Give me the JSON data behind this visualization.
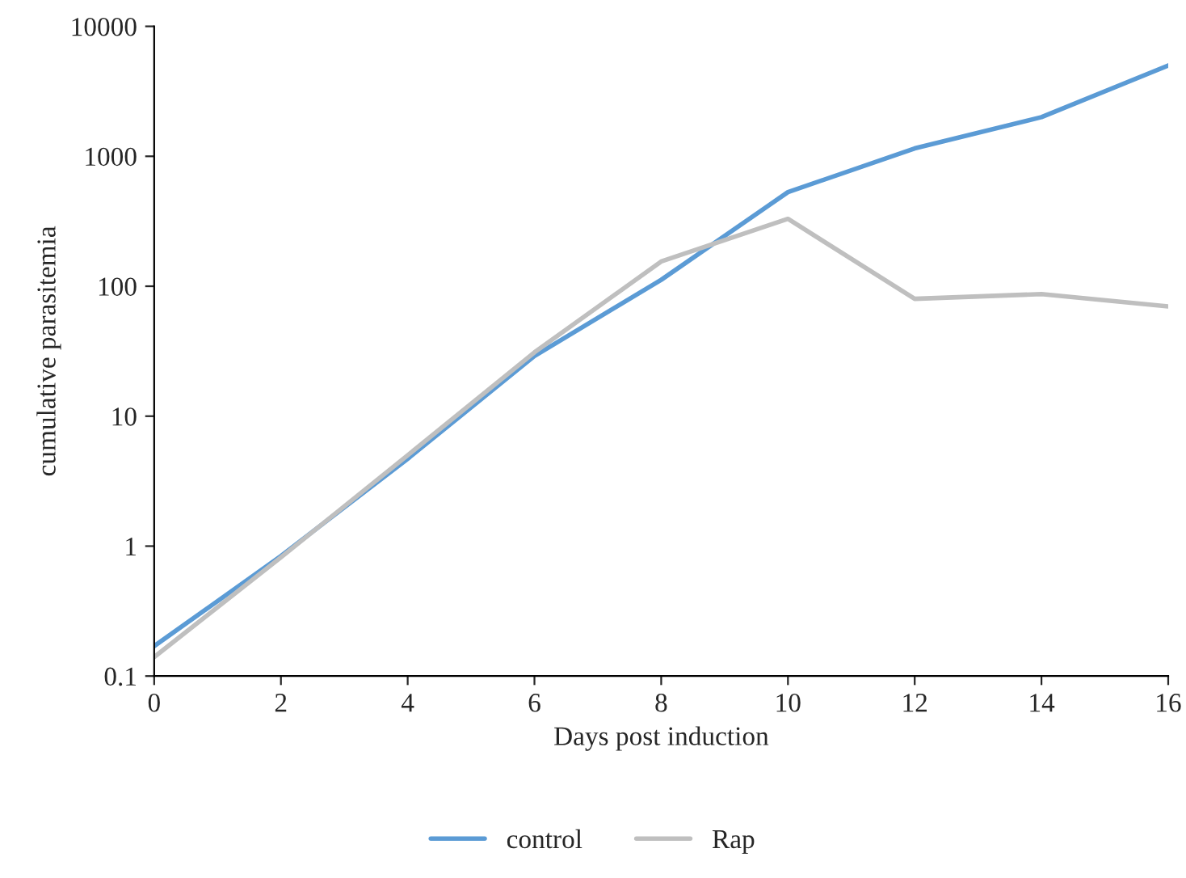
{
  "chart_data": {
    "type": "line",
    "xlabel": "Days post induction",
    "ylabel": "cumulative parasitemia",
    "x": [
      0,
      2,
      4,
      6,
      8,
      10,
      12,
      14,
      16
    ],
    "series": [
      {
        "name": "control",
        "color": "#5b9bd5",
        "values": [
          0.17,
          0.84,
          4.7,
          29,
          112,
          530,
          1150,
          2000,
          5000
        ]
      },
      {
        "name": "Rap",
        "color": "#bfbfbf",
        "values": [
          0.14,
          0.82,
          5,
          31,
          155,
          330,
          80,
          87,
          70
        ]
      }
    ],
    "log": "y",
    "xlim": [
      0,
      16
    ],
    "xticks": [
      0,
      2,
      4,
      6,
      8,
      10,
      12,
      14,
      16
    ],
    "ylim": [
      0.1,
      10000
    ],
    "yticks": [
      0.1,
      1,
      10,
      100,
      1000,
      10000
    ],
    "grid": false,
    "legend": "bottom",
    "marker": "none",
    "line_style": "solid"
  }
}
